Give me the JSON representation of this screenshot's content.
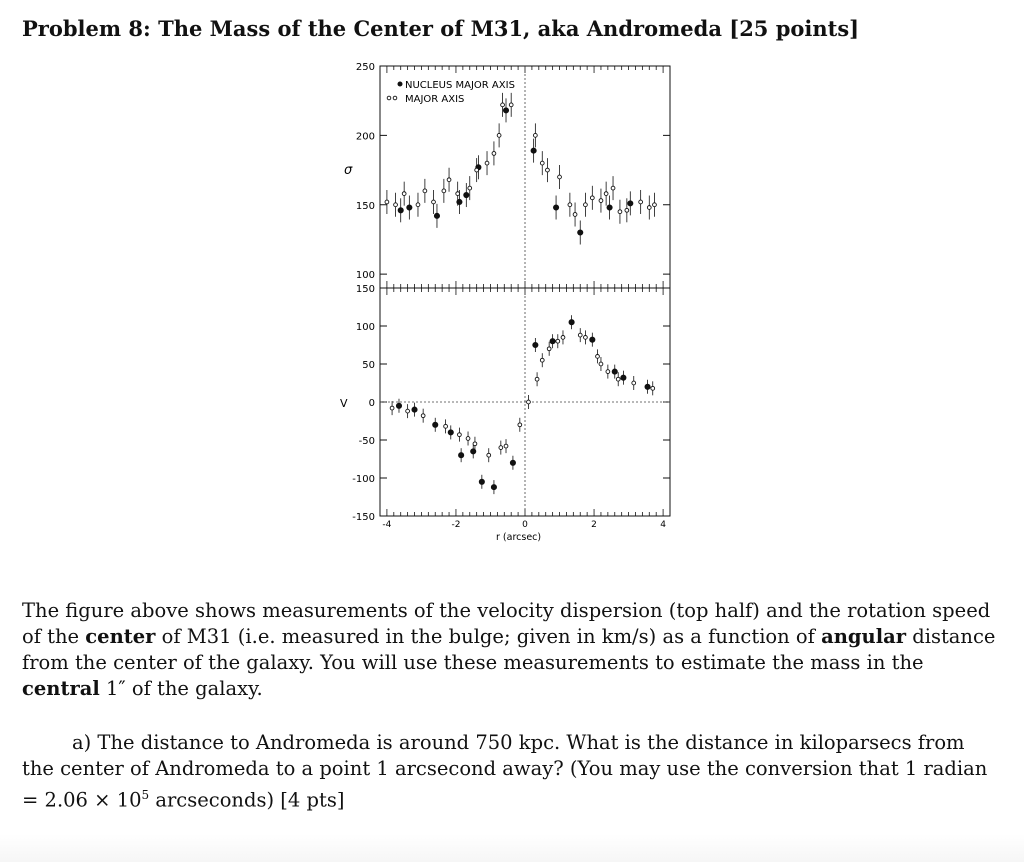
{
  "problem": {
    "title": "Problem 8: The Mass of the Center of M31, aka Andromeda [25 points]"
  },
  "chart_data": [
    {
      "type": "scatter",
      "title": "",
      "ylabel": "σ",
      "xlabel": "",
      "xlim": [
        -4.2,
        4.2
      ],
      "ylim": [
        90,
        250
      ],
      "yticks": [
        100,
        150,
        200,
        250
      ],
      "legend": [
        "NUCLEUS MAJOR AXIS",
        "MAJOR AXIS"
      ],
      "legend_placement": "top-left",
      "series": [
        {
          "name": "NUCLEUS MAJOR AXIS",
          "marker": "filled",
          "points": [
            [
              -3.6,
              146
            ],
            [
              -3.35,
              148
            ],
            [
              -2.55,
              142
            ],
            [
              -1.9,
              152
            ],
            [
              -1.7,
              157
            ],
            [
              -1.35,
              177
            ],
            [
              -0.55,
              218
            ],
            [
              0.25,
              189
            ],
            [
              0.9,
              148
            ],
            [
              1.6,
              130
            ],
            [
              2.45,
              148
            ],
            [
              3.05,
              151
            ]
          ]
        },
        {
          "name": "MAJOR AXIS",
          "marker": "open",
          "points": [
            [
              -4.0,
              152
            ],
            [
              -3.75,
              150
            ],
            [
              -3.5,
              158
            ],
            [
              -3.1,
              150
            ],
            [
              -2.9,
              160
            ],
            [
              -2.65,
              152
            ],
            [
              -2.35,
              160
            ],
            [
              -2.2,
              168
            ],
            [
              -1.95,
              158
            ],
            [
              -1.6,
              162
            ],
            [
              -1.4,
              175
            ],
            [
              -1.1,
              180
            ],
            [
              -0.9,
              187
            ],
            [
              -0.75,
              200
            ],
            [
              -0.4,
              222
            ],
            [
              -0.65,
              222
            ],
            [
              0.3,
              200
            ],
            [
              0.5,
              180
            ],
            [
              0.65,
              175
            ],
            [
              1.0,
              170
            ],
            [
              1.3,
              150
            ],
            [
              1.45,
              143
            ],
            [
              1.75,
              150
            ],
            [
              1.95,
              155
            ],
            [
              2.2,
              153
            ],
            [
              2.35,
              158
            ],
            [
              2.55,
              162
            ],
            [
              2.75,
              145
            ],
            [
              2.95,
              146
            ],
            [
              3.35,
              152
            ],
            [
              3.6,
              148
            ],
            [
              3.75,
              150
            ]
          ]
        }
      ]
    },
    {
      "type": "scatter",
      "title": "",
      "ylabel": "V",
      "xlabel": "r (arcsec)",
      "xlim": [
        -4.2,
        4.2
      ],
      "ylim": [
        -150,
        150
      ],
      "yticks": [
        -150,
        -100,
        -50,
        0,
        50,
        100,
        150
      ],
      "xticks": [
        -4,
        -2,
        0,
        2,
        4
      ],
      "zero_line": true,
      "center_line_x": 0,
      "series": [
        {
          "name": "NUCLEUS MAJOR AXIS",
          "marker": "filled",
          "points": [
            [
              -3.65,
              -5
            ],
            [
              -3.2,
              -10
            ],
            [
              -2.6,
              -30
            ],
            [
              -2.15,
              -40
            ],
            [
              -1.85,
              -70
            ],
            [
              -1.5,
              -65
            ],
            [
              -1.25,
              -105
            ],
            [
              -0.9,
              -112
            ],
            [
              -0.35,
              -80
            ],
            [
              0.3,
              75
            ],
            [
              0.8,
              80
            ],
            [
              1.35,
              105
            ],
            [
              1.95,
              82
            ],
            [
              2.6,
              40
            ],
            [
              2.85,
              32
            ],
            [
              3.55,
              20
            ]
          ]
        },
        {
          "name": "MAJOR AXIS",
          "marker": "open",
          "points": [
            [
              -3.85,
              -8
            ],
            [
              -3.4,
              -12
            ],
            [
              -2.95,
              -18
            ],
            [
              -2.3,
              -32
            ],
            [
              -1.9,
              -43
            ],
            [
              -1.65,
              -48
            ],
            [
              -1.45,
              -55
            ],
            [
              -1.05,
              -70
            ],
            [
              -0.7,
              -60
            ],
            [
              -0.55,
              -58
            ],
            [
              -0.15,
              -30
            ],
            [
              0.1,
              0
            ],
            [
              0.35,
              30
            ],
            [
              0.5,
              55
            ],
            [
              0.7,
              70
            ],
            [
              0.95,
              80
            ],
            [
              1.1,
              85
            ],
            [
              1.6,
              88
            ],
            [
              1.75,
              85
            ],
            [
              2.1,
              60
            ],
            [
              2.2,
              50
            ],
            [
              2.4,
              40
            ],
            [
              2.7,
              30
            ],
            [
              3.15,
              25
            ],
            [
              3.7,
              18
            ]
          ]
        }
      ]
    }
  ],
  "figure_labels": {
    "top_ylabel": "σ",
    "bottom_ylabel": "V",
    "xlabel": "r  (arcsec)",
    "legend_filled": "NUCLEUS MAJOR AXIS",
    "legend_open": "MAJOR AXIS",
    "top_ticks": [
      "250",
      "200",
      "150",
      "100"
    ],
    "bottom_ticks": [
      "150",
      "100",
      "50",
      "0",
      "-50",
      "-100",
      "-150"
    ],
    "x_ticks": [
      "-4",
      "-2",
      "0",
      "2",
      "4"
    ]
  },
  "body": {
    "p1": "The figure above shows measurements of the velocity dispersion (top half) and the rotation speed of the ",
    "p1_bold1": "center",
    "p1_b": " of M31 (i.e. measured in the bulge; given in km/s) as a function of ",
    "p1_bold2": "angular",
    "p1_c": " distance from the center of the galaxy. You will use these measurements to estimate the mass in the ",
    "p1_bold3": "central",
    "p1_d": " 1″ of the galaxy.",
    "a_text": "a) The distance to Andromeda is around 750 kpc. What is the distance in kiloparsecs from the center of Andromeda to a point 1 arcsecond away? (You may use the conversion that 1 radian = 2.06 × 10",
    "a_exp": "5",
    "a_tail": " arcseconds) [4 pts]"
  }
}
